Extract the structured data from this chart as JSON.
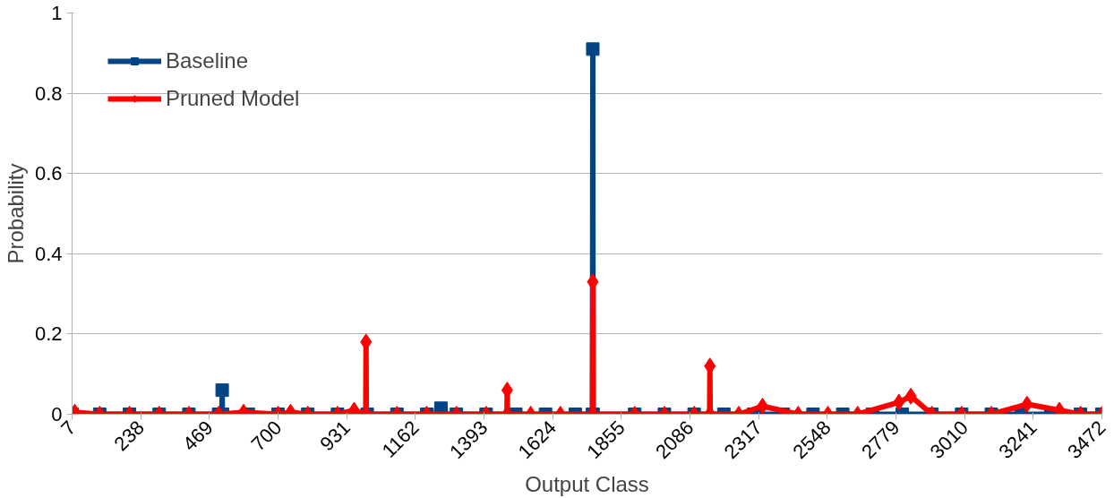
{
  "chart_data": {
    "type": "line",
    "xlabel": "Output Class",
    "ylabel": "Probability",
    "xlim": [
      7,
      3472
    ],
    "xticks": [
      7,
      238,
      469,
      700,
      931,
      1162,
      1393,
      1624,
      1855,
      2086,
      2317,
      2548,
      2779,
      3010,
      3241,
      3472
    ],
    "ylim": [
      0,
      1
    ],
    "yticks": [
      0,
      0.2,
      0.4,
      0.6,
      0.8,
      1
    ],
    "grid": "y",
    "legend": "top left",
    "line_style": "solid",
    "series": [
      {
        "name": "Baseline",
        "color": "#004586",
        "marker": "square",
        "x": [
          7,
          100,
          200,
          300,
          400,
          500,
          511,
          512,
          513,
          600,
          700,
          800,
          900,
          1000,
          1100,
          1200,
          1247,
          1248,
          1249,
          1300,
          1400,
          1500,
          1600,
          1700,
          1758,
          1759,
          1760,
          1900,
          2000,
          2100,
          2200,
          2300,
          2400,
          2500,
          2600,
          2700,
          2800,
          2900,
          3000,
          3100,
          3200,
          3300,
          3400,
          3472
        ],
        "values": [
          0,
          0,
          0,
          0,
          0,
          0,
          0,
          0.06,
          0,
          0,
          0,
          0,
          0,
          0,
          0,
          0,
          0,
          0.015,
          0,
          0,
          0,
          0,
          0,
          0,
          0,
          0.91,
          0,
          0,
          0,
          0,
          0,
          0,
          0,
          0,
          0,
          0,
          0,
          0,
          0,
          0,
          0,
          0,
          0,
          0
        ]
      },
      {
        "name": "Pruned Model",
        "color": "#ff0000",
        "marker": "diamond",
        "x": [
          7,
          16,
          100,
          200,
          300,
          400,
          500,
          584,
          700,
          742,
          800,
          900,
          956,
          995,
          996,
          997,
          1100,
          1200,
          1300,
          1400,
          1470,
          1471,
          1472,
          1550,
          1650,
          1758,
          1759,
          1760,
          1900,
          2000,
          2100,
          2152,
          2153,
          2154,
          2250,
          2330,
          2450,
          2550,
          2650,
          2789,
          2829,
          2900,
          3000,
          3100,
          3220,
          3329,
          3400,
          3472
        ],
        "values": [
          0,
          0.005,
          0,
          0,
          0,
          0,
          0,
          0.005,
          0,
          0.005,
          0,
          0,
          0.01,
          0,
          0.18,
          0,
          0,
          0,
          0,
          0,
          0,
          0.06,
          0,
          0,
          0,
          0,
          0.33,
          0,
          0,
          0,
          0,
          0,
          0.12,
          0,
          0,
          0.02,
          0,
          0,
          0,
          0.03,
          0.045,
          0,
          0,
          0,
          0.025,
          0.01,
          0,
          0
        ]
      }
    ]
  }
}
